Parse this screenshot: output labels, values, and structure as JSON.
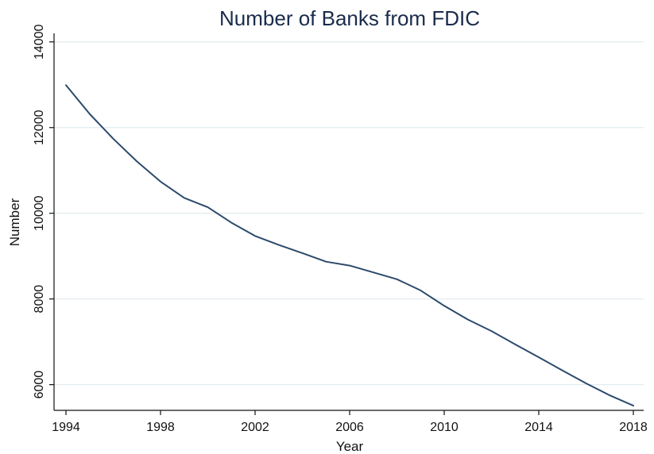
{
  "chart_data": {
    "type": "line",
    "title": "Number of Banks from FDIC",
    "xlabel": "Year",
    "ylabel": "Number",
    "xlim": [
      1994,
      2018
    ],
    "ylim": [
      5400,
      14200
    ],
    "x_ticks": [
      1994,
      1998,
      2002,
      2006,
      2010,
      2014,
      2018
    ],
    "y_ticks": [
      6000,
      8000,
      10000,
      12000,
      14000
    ],
    "grid": true,
    "series": [
      {
        "color": "#2c4a6b",
        "x": [
          1994,
          1995,
          1996,
          1997,
          1998,
          1999,
          2000,
          2001,
          2002,
          2003,
          2004,
          2005,
          2006,
          2007,
          2008,
          2009,
          2010,
          2011,
          2012,
          2013,
          2014,
          2015,
          2016,
          2017,
          2018
        ],
        "values": [
          12990,
          12320,
          11740,
          11210,
          10740,
          10360,
          10140,
          9780,
          9470,
          9260,
          9070,
          8870,
          8780,
          8620,
          8460,
          8200,
          7840,
          7520,
          7250,
          6940,
          6640,
          6330,
          6030,
          5750,
          5510
        ]
      }
    ]
  }
}
